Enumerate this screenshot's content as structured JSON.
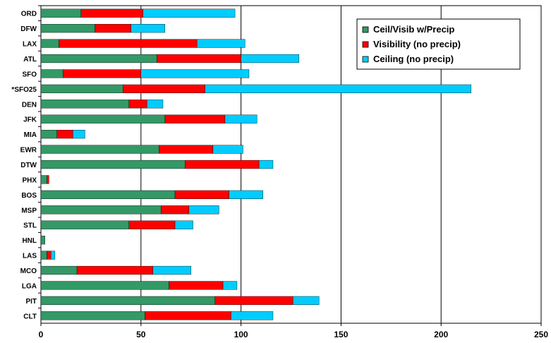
{
  "chart_data": {
    "type": "bar",
    "orientation": "horizontal",
    "stacked": true,
    "categories": [
      "ORD",
      "DFW",
      "LAX",
      "ATL",
      "SFO",
      "*SFO25",
      "DEN",
      "JFK",
      "MIA",
      "EWR",
      "DTW",
      "PHX",
      "BOS",
      "MSP",
      "STL",
      "HNL",
      "LAS",
      "MCO",
      "LGA",
      "PIT",
      "CLT"
    ],
    "series": [
      {
        "name": "Ceil/Visib w/Precip",
        "color": "#339966",
        "values": [
          20,
          27,
          9,
          58,
          11,
          41,
          44,
          62,
          8,
          59,
          72,
          3,
          67,
          60,
          44,
          2,
          3,
          18,
          64,
          87,
          52
        ]
      },
      {
        "name": "Visibility (no precip)",
        "color": "#ff0000",
        "values": [
          31,
          18,
          69,
          42,
          39,
          41,
          9,
          30,
          8,
          27,
          37,
          1,
          27,
          14,
          23,
          0,
          2,
          38,
          27,
          39,
          43
        ]
      },
      {
        "name": "Ceiling (no precip)",
        "color": "#00ccff",
        "values": [
          46,
          17,
          24,
          29,
          54,
          133,
          8,
          16,
          6,
          15,
          7,
          0,
          17,
          15,
          9,
          0,
          2,
          19,
          7,
          13,
          21
        ]
      }
    ],
    "xlim": [
      0,
      250
    ],
    "xticks": [
      "0",
      "50",
      "100",
      "150",
      "200",
      "250"
    ],
    "grid": "vertical",
    "legend_position": "top-right",
    "title": "",
    "xlabel": "",
    "ylabel": ""
  }
}
